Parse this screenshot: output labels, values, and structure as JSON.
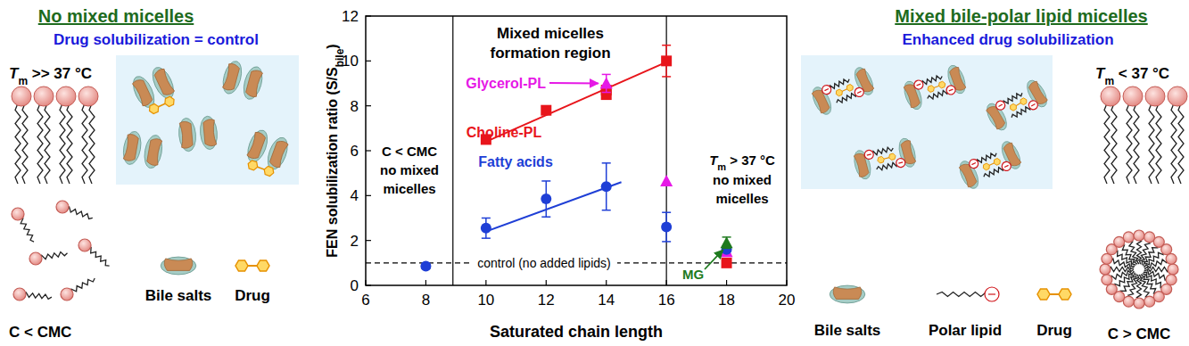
{
  "chart_data": {
    "type": "scatter",
    "x_label": "Saturated chain length",
    "y_label": {
      "text": "FEN solubilization ratio (S/S",
      "sub": "bile",
      "end": ")"
    },
    "xlim": [
      6,
      20
    ],
    "ylim": [
      0,
      12
    ],
    "xticks": [
      6,
      8,
      10,
      12,
      14,
      16,
      18,
      20
    ],
    "yticks": [
      0,
      2,
      4,
      6,
      8,
      10,
      12
    ],
    "grid": false,
    "series": [
      {
        "name": "Choline-PL",
        "color": "#e8151b",
        "marker": "square",
        "x": [
          10,
          12,
          14,
          14,
          16,
          18
        ],
        "values": [
          6.5,
          7.8,
          8.5,
          8.7,
          10.0,
          1.0
        ],
        "errors": [
          null,
          null,
          0.1,
          null,
          0.7,
          null
        ],
        "trend": {
          "x": [
            10,
            16
          ],
          "values": [
            6.4,
            9.95
          ]
        }
      },
      {
        "name": "Glycerol-PL",
        "color": "#e619e6",
        "marker": "triangle",
        "x": [
          14,
          16,
          18
        ],
        "values": [
          9.0,
          4.65,
          1.5
        ],
        "errors": [
          0.4,
          null,
          0.1
        ]
      },
      {
        "name": "Fatty acids",
        "color": "#1f3fd6",
        "marker": "circle",
        "x": [
          8,
          10,
          12,
          14,
          16,
          18
        ],
        "values": [
          0.85,
          2.55,
          3.85,
          4.4,
          2.6,
          1.6
        ],
        "errors": [
          0.1,
          0.45,
          0.8,
          1.05,
          0.65,
          0.1
        ],
        "trend": {
          "x": [
            10,
            14.5
          ],
          "values": [
            2.4,
            4.6
          ]
        }
      },
      {
        "name": "MG",
        "color": "#1e7a1e",
        "marker": "triangle",
        "x": [
          18
        ],
        "values": [
          1.9
        ],
        "errors": [
          0.25
        ]
      }
    ],
    "control": {
      "value": 1,
      "label": "control (no added lipids)"
    },
    "region_bounds": [
      8.9,
      16
    ],
    "annotations": {
      "region": [
        "Mixed micelles",
        "formation region"
      ],
      "below_cmc": [
        "C < CMC",
        "no mixed",
        "micelles"
      ],
      "above_tm": {
        "t": "T",
        "sub": "m",
        "rest": " > 37 °C",
        "lines": [
          "no mixed",
          "micelles"
        ]
      }
    }
  },
  "left_panel": {
    "title": "No mixed micelles",
    "subtitle": "Drug solubilization = control",
    "tm": {
      "t": "T",
      "sub": "m",
      "rest": " >> 37 °C"
    },
    "labels": {
      "bile": "Bile salts",
      "drug": "Drug"
    },
    "concentration": "C < CMC"
  },
  "right_panel": {
    "title": "Mixed bile-polar lipid micelles",
    "subtitle": "Enhanced drug solubilization",
    "tm": {
      "t": "T",
      "sub": "m",
      "rest": " < 37 °C"
    },
    "labels": {
      "bile": "Bile salts",
      "lipid": "Polar lipid",
      "drug": "Drug"
    },
    "concentration": "C > CMC"
  }
}
